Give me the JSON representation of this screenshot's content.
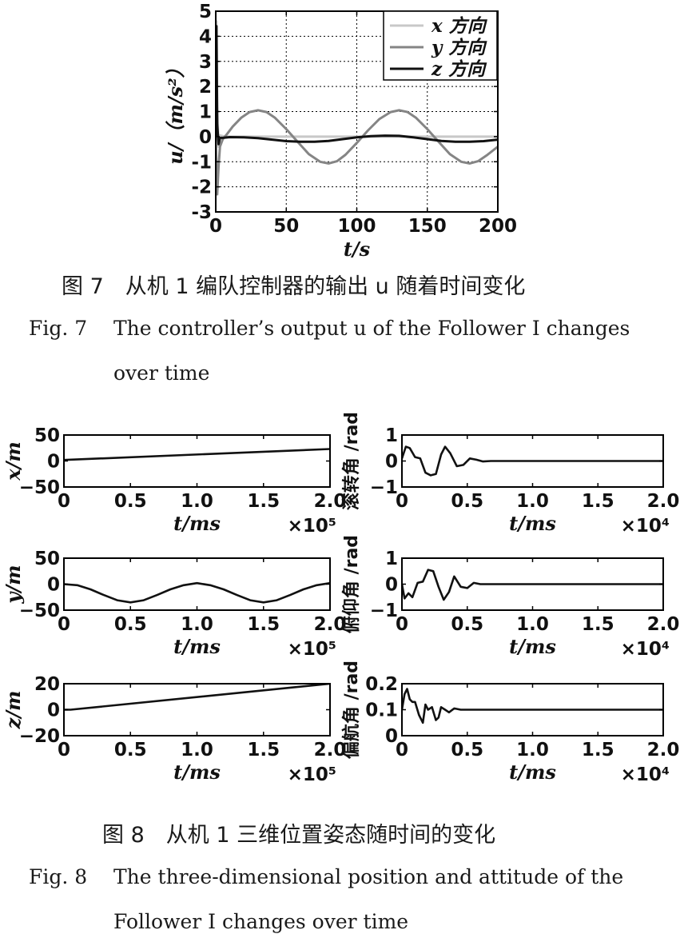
{
  "fig7": {
    "caption_cn": "图 7　从机 1 编队控制器的输出 u 随着时间变化",
    "caption_en_label": "Fig. 7",
    "caption_en_line1": "The controller’s output u of the Follower Ⅰ changes",
    "caption_en_line2": "over time"
  },
  "fig8": {
    "caption_cn": "图 8　从机 1 三维位置姿态随时间的变化",
    "caption_en_label": "Fig. 8",
    "caption_en_line1": "The three-dimensional position and attitude of the",
    "caption_en_line2": "Follower Ⅰ changes over time"
  },
  "colors": {
    "x_series": "#c8c8c8",
    "y_series": "#858585",
    "z_series": "#111111"
  },
  "chart_data": [
    {
      "id": "u",
      "type": "line",
      "xlabel": "t/s",
      "ylabel": "u/（m/s²）",
      "xlim": [
        0,
        200
      ],
      "ylim": [
        -3,
        5
      ],
      "xticks": [
        0,
        50,
        100,
        150,
        200
      ],
      "yticks": [
        -3,
        -2,
        -1,
        0,
        1,
        2,
        3,
        4,
        5
      ],
      "grid": true,
      "legend": "top-right",
      "series": [
        {
          "name": "x 方向",
          "x": [
            0,
            0.5,
            1,
            2,
            3,
            5,
            8,
            200
          ],
          "y": [
            0,
            4.6,
            1.2,
            -0.4,
            0.05,
            0.02,
            0,
            0
          ]
        },
        {
          "name": "y 方向",
          "x": [
            0,
            1,
            2,
            3,
            5,
            8,
            12,
            18,
            24,
            30,
            36,
            42,
            50,
            58,
            66,
            74,
            80,
            86,
            92,
            100,
            108,
            116,
            124,
            130,
            136,
            142,
            150,
            158,
            166,
            174,
            180,
            186,
            192,
            200
          ],
          "y": [
            0,
            -2.3,
            -1.2,
            -0.4,
            -0.1,
            0.1,
            0.4,
            0.75,
            0.98,
            1.05,
            0.98,
            0.75,
            0.3,
            -0.2,
            -0.7,
            -1.0,
            -1.07,
            -0.98,
            -0.72,
            -0.25,
            0.25,
            0.7,
            0.98,
            1.05,
            0.98,
            0.75,
            0.3,
            -0.2,
            -0.7,
            -1.0,
            -1.07,
            -0.98,
            -0.75,
            -0.4
          ]
        },
        {
          "name": "z 方向",
          "x": [
            0,
            0.5,
            1,
            2,
            3,
            5,
            10,
            20,
            30,
            40,
            50,
            60,
            70,
            80,
            90,
            100,
            110,
            120,
            130,
            140,
            150,
            160,
            170,
            180,
            190,
            200
          ],
          "y": [
            0,
            4.4,
            0.5,
            -0.3,
            -0.05,
            -0.05,
            -0.02,
            -0.03,
            -0.06,
            -0.12,
            -0.18,
            -0.2,
            -0.2,
            -0.17,
            -0.1,
            -0.03,
            0.02,
            0.04,
            0.03,
            -0.03,
            -0.1,
            -0.17,
            -0.2,
            -0.2,
            -0.18,
            -0.12
          ]
        }
      ]
    },
    {
      "id": "x-pos",
      "type": "line",
      "xlabel": "t/ms",
      "xscale_label": "×10⁵",
      "ylabel": "x/m",
      "xlim": [
        0,
        2
      ],
      "ylim": [
        -50,
        50
      ],
      "xticks": [
        0,
        0.5,
        1,
        1.5,
        2
      ],
      "xtick_labels": [
        "0",
        "0.5",
        "1.0",
        "1.5",
        "2.0"
      ],
      "yticks": [
        -50,
        0,
        50
      ],
      "ytick_labels": [
        "−50",
        "0",
        "50"
      ],
      "series": [
        {
          "x": [
            0,
            2
          ],
          "y": [
            2,
            23
          ]
        }
      ]
    },
    {
      "id": "y-pos",
      "type": "line",
      "xlabel": "t/ms",
      "xscale_label": "×10⁵",
      "ylabel": "y/m",
      "xlim": [
        0,
        2
      ],
      "ylim": [
        -50,
        50
      ],
      "xticks": [
        0,
        0.5,
        1,
        1.5,
        2
      ],
      "xtick_labels": [
        "0",
        "0.5",
        "1.0",
        "1.5",
        "2.0"
      ],
      "yticks": [
        -50,
        0,
        50
      ],
      "ytick_labels": [
        "−50",
        "0",
        "50"
      ],
      "series": [
        {
          "x": [
            0,
            0.1,
            0.2,
            0.3,
            0.4,
            0.5,
            0.6,
            0.7,
            0.8,
            0.9,
            1.0,
            1.1,
            1.2,
            1.3,
            1.4,
            1.5,
            1.6,
            1.7,
            1.8,
            1.9,
            2.0
          ],
          "y": [
            0,
            -2,
            -10,
            -21,
            -31,
            -35,
            -31,
            -21,
            -10,
            -2,
            2,
            -2,
            -10,
            -21,
            -31,
            -35,
            -31,
            -21,
            -10,
            -2,
            2
          ]
        }
      ]
    },
    {
      "id": "z-pos",
      "type": "line",
      "xlabel": "t/ms",
      "xscale_label": "×10⁵",
      "ylabel": "z/m",
      "xlim": [
        0,
        2
      ],
      "ylim": [
        -20,
        20
      ],
      "xticks": [
        0,
        0.5,
        1,
        1.5,
        2
      ],
      "xtick_labels": [
        "0",
        "0.5",
        "1.0",
        "1.5",
        "2.0"
      ],
      "yticks": [
        -20,
        0,
        20
      ],
      "ytick_labels": [
        "−20",
        "0",
        "20"
      ],
      "series": [
        {
          "x": [
            0,
            0.05,
            2
          ],
          "y": [
            0,
            0,
            20
          ]
        }
      ]
    },
    {
      "id": "roll",
      "type": "line",
      "xlabel": "t/ms",
      "xscale_label": "×10⁴",
      "ylabel": "滚转角 /rad",
      "xlim": [
        0,
        2
      ],
      "ylim": [
        -1,
        1
      ],
      "xticks": [
        0,
        0.5,
        1,
        1.5,
        2
      ],
      "xtick_labels": [
        "0",
        "0.5",
        "1.0",
        "1.5",
        "2.0"
      ],
      "yticks": [
        -1,
        0,
        1
      ],
      "ytick_labels": [
        "−1",
        "0",
        "1"
      ],
      "series": [
        {
          "x": [
            0,
            0.03,
            0.06,
            0.1,
            0.14,
            0.18,
            0.22,
            0.26,
            0.3,
            0.33,
            0.37,
            0.42,
            0.47,
            0.52,
            0.57,
            0.62,
            0.68,
            2.0
          ],
          "y": [
            0.1,
            0.55,
            0.5,
            0.15,
            0.1,
            -0.45,
            -0.55,
            -0.5,
            0.25,
            0.55,
            0.3,
            -0.2,
            -0.15,
            0.1,
            0.05,
            -0.02,
            0,
            0
          ]
        }
      ]
    },
    {
      "id": "pitch",
      "type": "line",
      "xlabel": "t/ms",
      "xscale_label": "×10⁴",
      "ylabel": "俯仰角 /rad",
      "xlim": [
        0,
        2
      ],
      "ylim": [
        -1,
        1
      ],
      "xticks": [
        0,
        0.5,
        1,
        1.5,
        2
      ],
      "xtick_labels": [
        "0",
        "0.5",
        "1.0",
        "1.5",
        "2.0"
      ],
      "yticks": [
        -1,
        0,
        1
      ],
      "ytick_labels": [
        "−1",
        "0",
        "1"
      ],
      "series": [
        {
          "x": [
            0,
            0.02,
            0.05,
            0.08,
            0.12,
            0.16,
            0.2,
            0.24,
            0.28,
            0.32,
            0.36,
            0.4,
            0.45,
            0.5,
            0.55,
            0.6,
            2.0
          ],
          "y": [
            0,
            -0.55,
            -0.35,
            -0.5,
            0.05,
            0.1,
            0.55,
            0.5,
            -0.1,
            -0.6,
            -0.3,
            0.3,
            -0.1,
            -0.15,
            0.05,
            0,
            0
          ]
        }
      ]
    },
    {
      "id": "yaw",
      "type": "line",
      "xlabel": "t/ms",
      "xscale_label": "×10⁴",
      "ylabel": "偏航角 /rad",
      "xlim": [
        0,
        2
      ],
      "ylim": [
        0,
        0.2
      ],
      "xticks": [
        0,
        0.5,
        1,
        1.5,
        2
      ],
      "xtick_labels": [
        "0",
        "0.5",
        "1.0",
        "1.5",
        "2.0"
      ],
      "yticks": [
        0,
        0.1,
        0.2
      ],
      "ytick_labels": [
        "0",
        "0.1",
        "0.2"
      ],
      "series": [
        {
          "x": [
            0,
            0.02,
            0.04,
            0.06,
            0.08,
            0.1,
            0.13,
            0.16,
            0.18,
            0.2,
            0.23,
            0.26,
            0.28,
            0.3,
            0.33,
            0.36,
            0.4,
            0.45,
            0.5,
            2.0
          ],
          "y": [
            0.1,
            0.16,
            0.18,
            0.14,
            0.13,
            0.13,
            0.08,
            0.05,
            0.12,
            0.1,
            0.11,
            0.06,
            0.07,
            0.11,
            0.1,
            0.09,
            0.105,
            0.1,
            0.1,
            0.1
          ]
        }
      ]
    }
  ]
}
